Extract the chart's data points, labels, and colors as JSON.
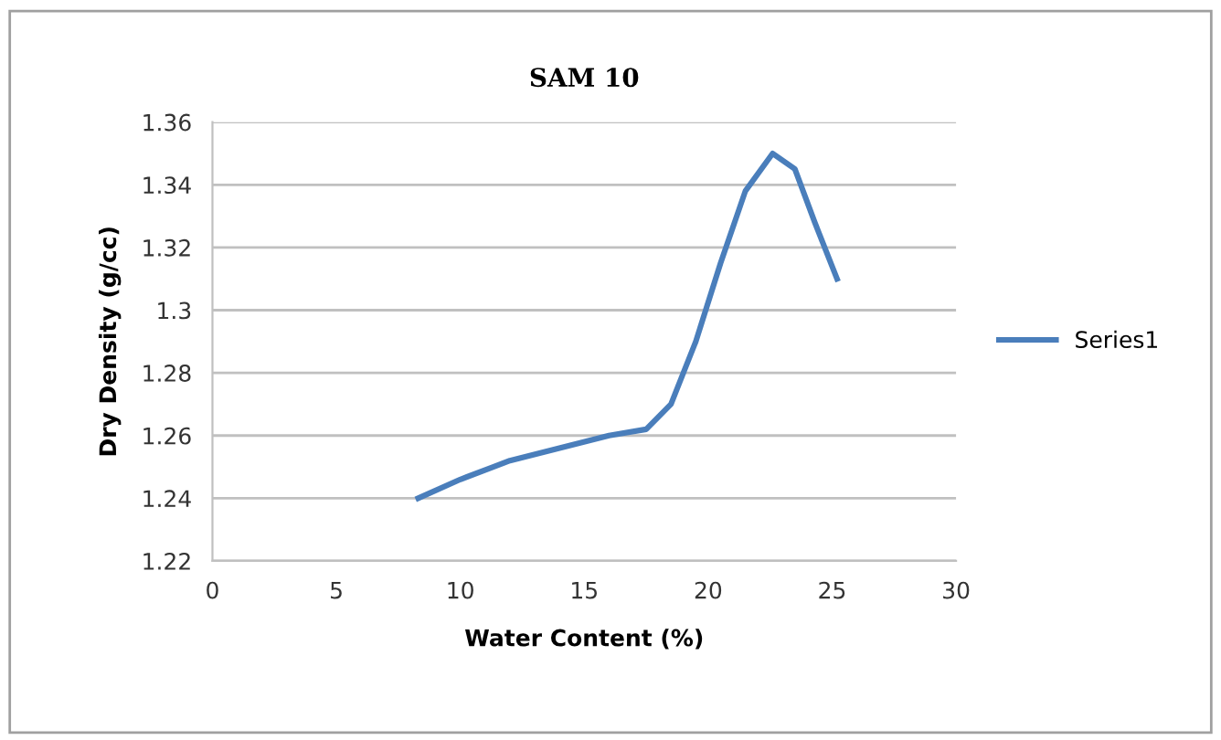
{
  "chart_data": {
    "type": "line",
    "title": "SAM 10",
    "xlabel": "Water Content (%)",
    "ylabel": "Dry Density (g/cc)",
    "xlim": [
      0,
      30
    ],
    "xticks": [
      0,
      5,
      10,
      15,
      20,
      25,
      30
    ],
    "ylim": [
      1.22,
      1.36
    ],
    "yticks": [
      1.22,
      1.24,
      1.26,
      1.28,
      1.3,
      1.32,
      1.34,
      1.36
    ],
    "grid": "y",
    "legend": "right",
    "line_style": "solid",
    "series": [
      {
        "name": "Series1",
        "color": "#4a7ebb",
        "x": [
          8.3,
          10,
          12,
          14,
          16,
          17.5,
          18.5,
          19.5,
          20.5,
          21.5,
          22.6,
          23.5,
          24.3,
          25.2
        ],
        "values": [
          1.24,
          1.246,
          1.252,
          1.256,
          1.26,
          1.262,
          1.27,
          1.29,
          1.315,
          1.338,
          1.35,
          1.345,
          1.328,
          1.31
        ]
      }
    ]
  }
}
